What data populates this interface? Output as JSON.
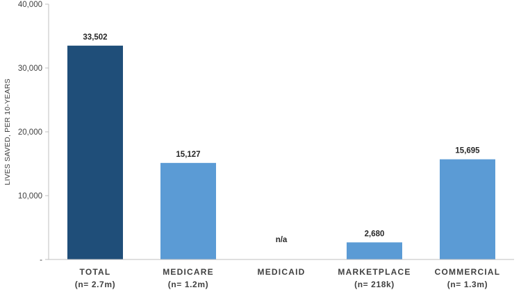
{
  "chart_data": {
    "type": "bar",
    "categories": [
      "TOTAL",
      "MEDICARE",
      "MEDICAID",
      "MARKETPLACE",
      "COMMERCIAL"
    ],
    "category_sublabels": [
      "(n= 2.7m)",
      "(n= 1.2m)",
      "",
      "(n= 218k)",
      "(n= 1.3m)"
    ],
    "values": [
      33502,
      15127,
      null,
      2680,
      15695
    ],
    "data_labels": [
      "33,502",
      "15,127",
      "n/a",
      "2,680",
      "15,695"
    ],
    "bar_colors": [
      "#1f4e79",
      "#5b9bd5",
      "#5b9bd5",
      "#5b9bd5",
      "#5b9bd5"
    ],
    "ylabel": "LIVES SAVED, PER 10-YEARS",
    "ylim": [
      0,
      40000
    ],
    "yticks": [
      0,
      10000,
      20000,
      30000,
      40000
    ],
    "ytick_labels": [
      "-",
      "10,000",
      "20,000",
      "30,000",
      "40,000"
    ],
    "grid": false,
    "axis_color": "#bfbfbf"
  }
}
